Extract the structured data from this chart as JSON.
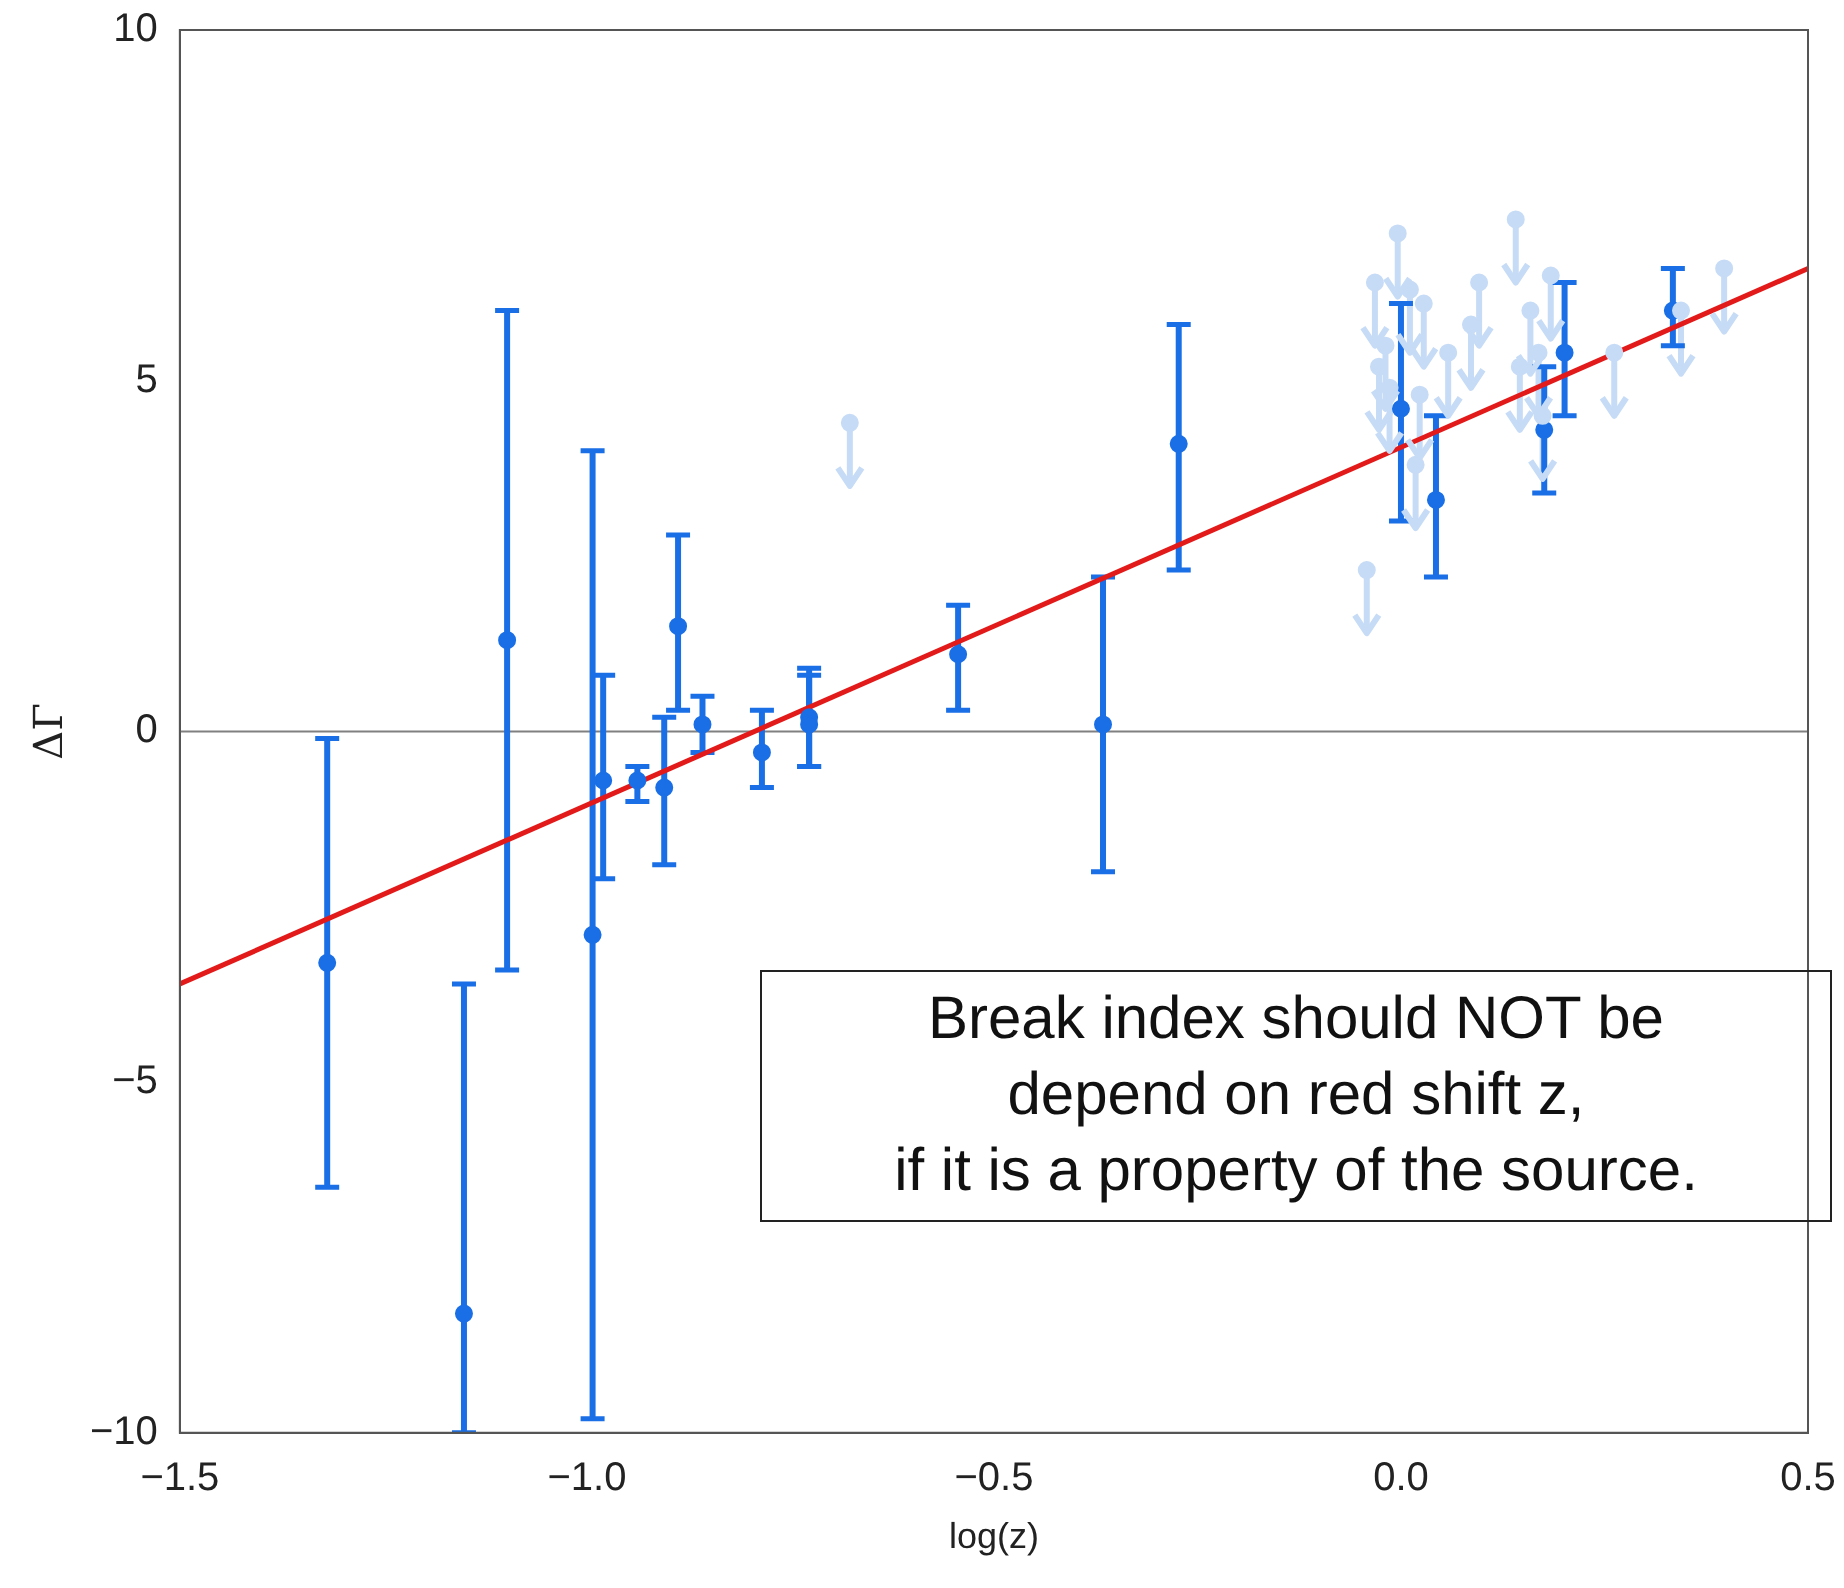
{
  "chart_data": {
    "type": "scatter",
    "xlabel": "log(z)",
    "ylabel": "ΔΓ",
    "xlim": [
      -1.5,
      0.5
    ],
    "ylim": [
      -10,
      10
    ],
    "xticks": [
      {
        "value": -1.5,
        "label": "−1.5"
      },
      {
        "value": -1.0,
        "label": "−1.0"
      },
      {
        "value": -0.5,
        "label": "−0.5"
      },
      {
        "value": 0,
        "label": "0.0"
      },
      {
        "value": 0.5,
        "label": "0.5"
      }
    ],
    "yticks": [
      {
        "value": -10,
        "label": "−10"
      },
      {
        "value": -5,
        "label": "−5"
      },
      0,
      5,
      10
    ],
    "grid": false,
    "legend": false,
    "ref_lines": [
      {
        "axis": "y",
        "value": 0,
        "color": "#808080"
      }
    ],
    "annotations": [
      "Break index should NOT be\ndepend on red shift z,\nif it is a property of the source."
    ],
    "series": [
      {
        "marker": "circle",
        "color": "#c6dbf6",
        "x": [
          -0.677,
          -0.042,
          -0.032,
          -0.004,
          0.011,
          0.028,
          -0.019,
          -0.027,
          -0.014,
          0.023,
          0.018,
          0.058,
          0.086,
          0.096,
          0.141,
          0.159,
          0.146,
          0.169,
          0.184,
          0.174,
          0.262,
          0.344,
          0.397
        ],
        "values": [
          4.4,
          2.3,
          6.4,
          7.1,
          6.3,
          6.1,
          5.5,
          5.2,
          4.9,
          4.8,
          3.8,
          5.4,
          5.8,
          6.4,
          7.3,
          6.0,
          5.2,
          5.4,
          6.5,
          4.5,
          5.4,
          6.0,
          6.6
        ],
        "errors": [
          [
            3.5,
            4.4
          ],
          [
            1.4,
            2.3
          ],
          [
            5.5,
            6.4
          ],
          [
            6.2,
            7.1
          ],
          [
            5.4,
            6.3
          ],
          [
            5.2,
            6.1
          ],
          [
            4.6,
            5.5
          ],
          [
            4.3,
            5.2
          ],
          [
            4.0,
            4.9
          ],
          [
            3.9,
            4.8
          ],
          [
            2.9,
            3.8
          ],
          [
            4.5,
            5.4
          ],
          [
            4.9,
            5.8
          ],
          [
            5.5,
            6.4
          ],
          [
            6.4,
            7.3
          ],
          [
            5.1,
            6.0
          ],
          [
            4.3,
            5.2
          ],
          [
            4.5,
            5.4
          ],
          [
            5.6,
            6.5
          ],
          [
            3.6,
            4.5
          ],
          [
            4.5,
            5.4
          ],
          [
            5.1,
            6.0
          ],
          [
            5.7,
            6.6
          ]
        ]
      },
      {
        "marker": "circle",
        "color": "#1a6fe6",
        "x": [
          -1.319,
          -1.151,
          -1.098,
          -0.993,
          -0.98,
          -0.938,
          -0.905,
          -0.888,
          -0.858,
          -0.785,
          -0.727,
          -0.727,
          -0.544,
          -0.366,
          -0.273,
          0.0,
          0.043,
          0.176,
          0.201,
          0.334
        ],
        "values": [
          -3.3,
          -8.3,
          1.3,
          -2.9,
          -0.7,
          -0.7,
          -0.8,
          1.5,
          0.1,
          -0.3,
          0.2,
          0.1,
          1.1,
          0.1,
          4.1,
          4.6,
          3.3,
          4.3,
          5.4,
          6.0
        ],
        "errors": [
          [
            -6.5,
            -0.1
          ],
          [
            -10,
            -3.6
          ],
          [
            -3.4,
            6.0
          ],
          [
            -9.8,
            4.0
          ],
          [
            -2.1,
            0.8
          ],
          [
            -1.0,
            -0.5
          ],
          [
            -1.9,
            0.2
          ],
          [
            0.3,
            2.8
          ],
          [
            -0.3,
            0.5
          ],
          [
            -0.8,
            0.3
          ],
          [
            -0.5,
            0.9
          ],
          [
            -0.5,
            0.8
          ],
          [
            0.3,
            1.8
          ],
          [
            -2.0,
            2.2
          ],
          [
            2.3,
            5.8
          ],
          [
            3.0,
            6.1
          ],
          [
            2.2,
            4.5
          ],
          [
            3.4,
            5.2
          ],
          [
            4.5,
            6.4
          ],
          [
            5.5,
            6.6
          ]
        ]
      },
      {
        "type": "line",
        "marker": "none",
        "color": "#e31a1a",
        "x": [
          -1.5,
          0.5
        ],
        "values": [
          -3.6,
          6.6
        ]
      }
    ]
  }
}
